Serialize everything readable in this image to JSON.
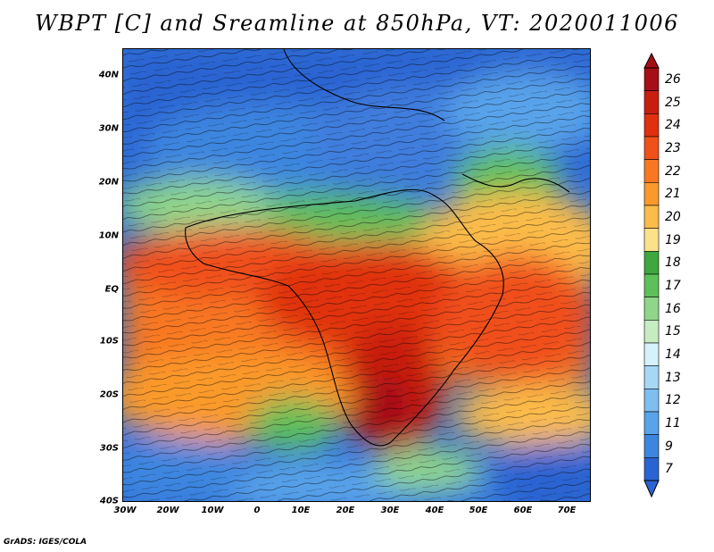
{
  "title": "WBPT [C] and Sreamline at 850hPa, VT: 2020011006",
  "credit": "GrADS: IGES/COLA",
  "map": {
    "lon_ticks": [
      "30W",
      "20W",
      "10W",
      "0",
      "10E",
      "20E",
      "30E",
      "40E",
      "50E",
      "60E",
      "70E"
    ],
    "lat_ticks": [
      "40N",
      "30N",
      "20N",
      "10N",
      "EQ",
      "10S",
      "20S",
      "30S",
      "40S"
    ]
  },
  "colorbar": {
    "labels": [
      "26",
      "25",
      "24",
      "23",
      "22",
      "21",
      "20",
      "19",
      "18",
      "17",
      "16",
      "15",
      "14",
      "13",
      "12",
      "11",
      "9",
      "7"
    ],
    "colors": [
      "#a50f15",
      "#c81e10",
      "#e0300e",
      "#f0501a",
      "#f87822",
      "#fa9a2c",
      "#fcbc4a",
      "#fde08a",
      "#3ea83e",
      "#5dc05a",
      "#8fd68a",
      "#c6ecc2",
      "#d5f2fb",
      "#a6d8f6",
      "#7ebff0",
      "#58a3ea",
      "#3c86e0",
      "#2a64d2"
    ]
  },
  "legend_colors": {
    "cold": "#2a64d2",
    "cool": "#7ebff0",
    "mild": "#3ea83e",
    "warm": "#fcbc4a",
    "hot": "#e0300e",
    "hottest": "#a50f15"
  }
}
